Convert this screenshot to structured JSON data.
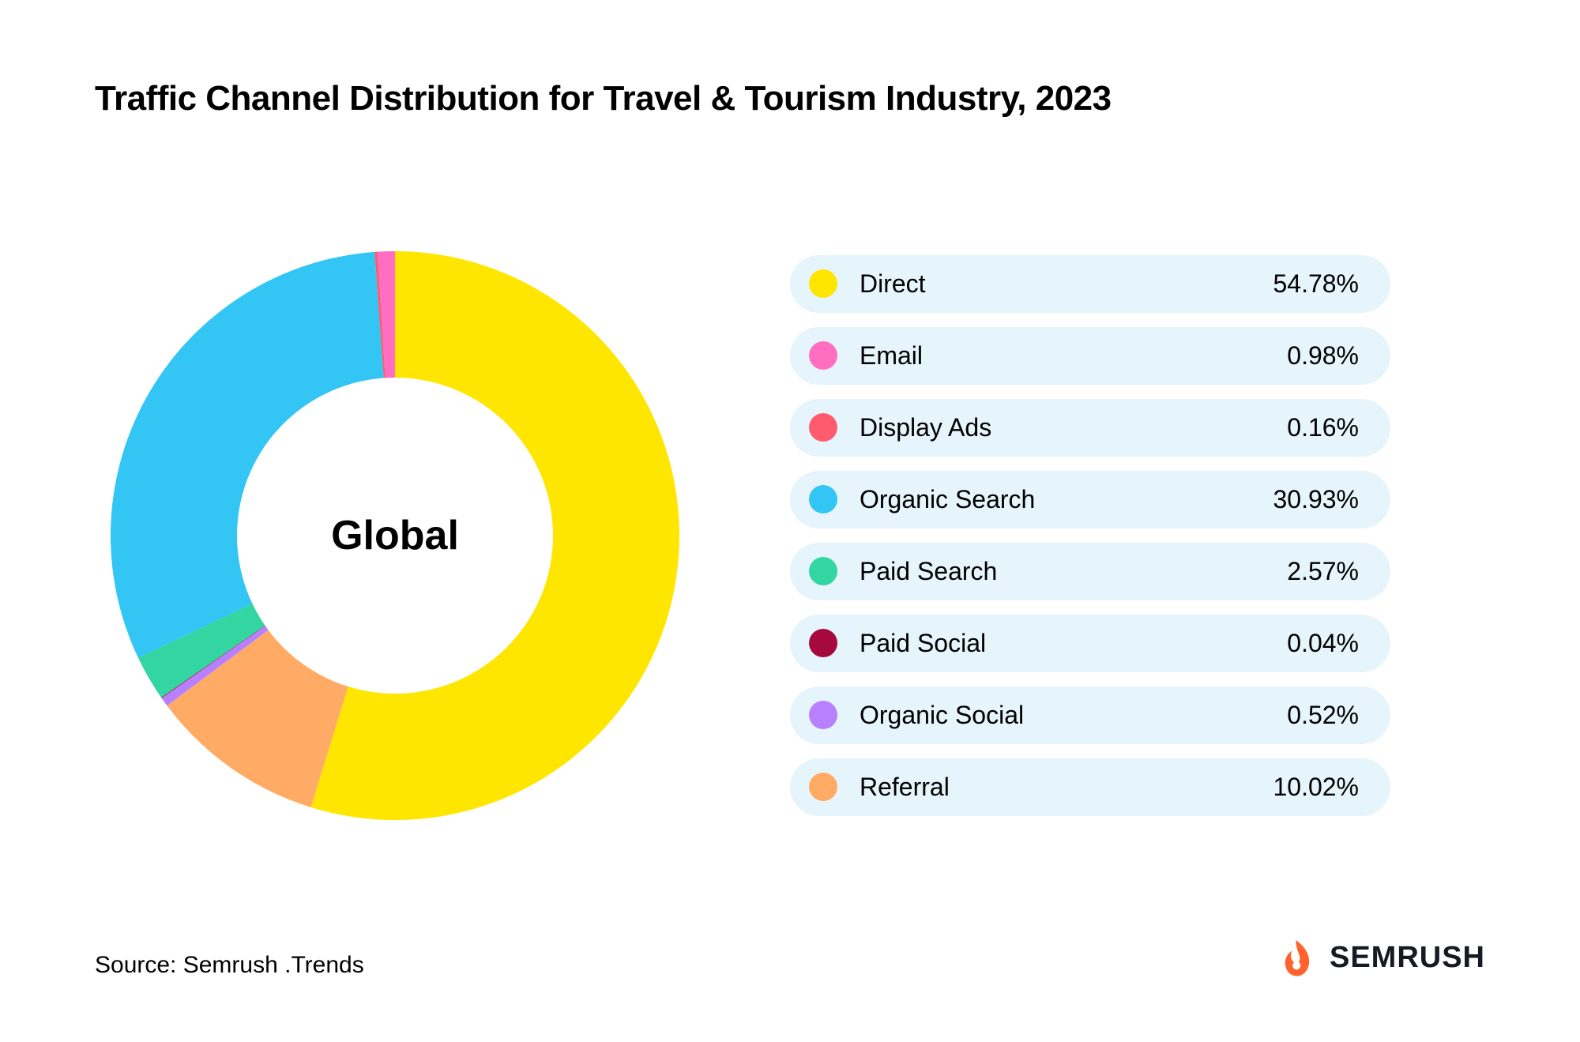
{
  "title": "Traffic Channel Distribution for Travel & Tourism Industry, 2023",
  "chart": {
    "type": "donut",
    "center_label": "Global",
    "center_label_fontsize": 52,
    "center_label_color": "#000000",
    "background_color": "#ffffff",
    "outer_radius": 360,
    "inner_radius": 200,
    "start_angle_deg": 0,
    "direction": "clockwise",
    "segments": [
      {
        "label": "Direct",
        "value": 54.78,
        "color": "#ffe600",
        "value_display": "54.78%"
      },
      {
        "label": "Referral",
        "value": 10.02,
        "color": "#ffab66",
        "value_display": "10.02%"
      },
      {
        "label": "Organic Social",
        "value": 0.52,
        "color": "#b880ff",
        "value_display": "0.52%"
      },
      {
        "label": "Paid Social",
        "value": 0.04,
        "color": "#a6093d",
        "value_display": "0.04%"
      },
      {
        "label": "Paid Search",
        "value": 2.57,
        "color": "#33d6a0",
        "value_display": "2.57%"
      },
      {
        "label": "Organic Search",
        "value": 30.93,
        "color": "#33c6f4",
        "value_display": "30.93%"
      },
      {
        "label": "Display Ads",
        "value": 0.16,
        "color": "#ff5b6e",
        "value_display": "0.16%"
      },
      {
        "label": "Email",
        "value": 0.98,
        "color": "#ff6ec0",
        "value_display": "0.98%"
      }
    ]
  },
  "legend": {
    "item_bg": "#e6f4fb",
    "item_radius": 40,
    "font_size": 32,
    "text_color": "#000000",
    "swatch_size": 36,
    "items": [
      {
        "label": "Direct",
        "value": "54.78%",
        "color": "#ffe600"
      },
      {
        "label": "Email",
        "value": "0.98%",
        "color": "#ff6ec0"
      },
      {
        "label": "Display Ads",
        "value": "0.16%",
        "color": "#ff5b6e"
      },
      {
        "label": "Organic Search",
        "value": "30.93%",
        "color": "#33c6f4"
      },
      {
        "label": "Paid Search",
        "value": "2.57%",
        "color": "#33d6a0"
      },
      {
        "label": "Paid Social",
        "value": "0.04%",
        "color": "#a6093d"
      },
      {
        "label": "Organic Social",
        "value": "0.52%",
        "color": "#b880ff"
      },
      {
        "label": "Referral",
        "value": "10.02%",
        "color": "#ffab66"
      }
    ]
  },
  "footer": {
    "source": "Source: Semrush .Trends",
    "brand_name": "SEMRUSH",
    "brand_icon_color": "#ff642d",
    "brand_text_color": "#171a22"
  }
}
